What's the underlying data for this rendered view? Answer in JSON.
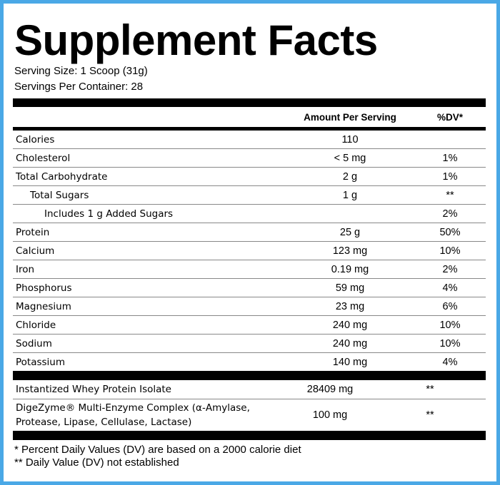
{
  "title": "Supplement Facts",
  "serving_size": "Serving Size: 1 Scoop (31g)",
  "servings_per_container": "Servings Per Container: 28",
  "table": {
    "header": {
      "amount": "Amount Per Serving",
      "dv": "%DV*"
    },
    "sections": [
      {
        "rows": [
          {
            "name": "Calories",
            "amount": "110"
          },
          {
            "name": "Cholesterol",
            "amount": "< 5 mg",
            "dv": "1%"
          },
          {
            "name": "Total Carbohydrate",
            "amount": "2 g",
            "dv": "1%",
            "sub": [
              {
                "name": "Total Sugars",
                "amount": "1 g",
                "dv": "**",
                "sub": [
                  {
                    "name": "Includes 1 g Added Sugars",
                    "dv": "2%"
                  }
                ]
              }
            ]
          },
          {
            "name": "Protein",
            "amount": "25 g",
            "dv": "50%"
          },
          {
            "name": "Calcium",
            "amount": "123 mg",
            "dv": "10%"
          },
          {
            "name": "Iron",
            "amount": "0.19 mg",
            "dv": "2%"
          },
          {
            "name": "Phosphorus",
            "amount": "59 mg",
            "dv": "4%"
          },
          {
            "name": "Magnesium",
            "amount": "23 mg",
            "dv": "6%"
          },
          {
            "name": "Chloride",
            "amount": "240 mg",
            "dv": "10%"
          },
          {
            "name": "Sodium",
            "amount": "240 mg",
            "dv": "10%"
          },
          {
            "name": "Potassium",
            "amount": "140 mg",
            "dv": "4%"
          }
        ]
      },
      {
        "rows": [
          {
            "name": "Instantized Whey Protein Isolate",
            "amount": "28409 mg",
            "dv": "**"
          },
          {
            "name": "DigeZyme® Multi-Enzyme Complex (α-Amylase, Protease, Lipase, Cellulase, Lactase)",
            "amount": "100 mg",
            "dv": "**"
          }
        ]
      }
    ]
  },
  "footnotes": [
    "* Percent Daily Values (DV) are based on a 2000 calorie diet",
    "** Daily Value (DV) not established"
  ]
}
